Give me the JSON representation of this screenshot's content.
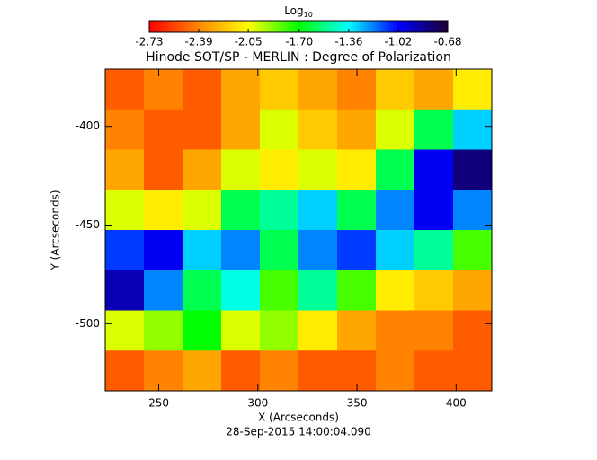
{
  "chart_data": {
    "type": "heatmap",
    "title": "Hinode SOT/SP - MERLIN : Degree of Polarization",
    "subtitle": "28-Sep-2015 14:00:04.090",
    "x_label": "X (Arcseconds)",
    "y_label": "Y (Arcseconds)",
    "colorbar_label": "Log",
    "colorbar_label_sub": "10",
    "colorbar_lim": [
      -2.73,
      -0.68
    ],
    "colorbar_ticks": [
      -2.73,
      -2.39,
      -2.05,
      {
        "value": -1.7,
        "label": "-1.70"
      },
      -1.36,
      -1.02,
      -0.68
    ],
    "colormap": [
      "#ff0000",
      "#ff8800",
      "#ffff00",
      "#00ff00",
      "#00ffff",
      "#0000ff",
      "#1a0033"
    ],
    "xlim": [
      223,
      418
    ],
    "xticks": [
      250,
      300,
      350,
      400
    ],
    "ylim": [
      -534,
      -371
    ],
    "yticks": [
      -400,
      -450,
      -500
    ],
    "values": [
      [
        -2.5,
        -2.4,
        -2.5,
        -2.3,
        -2.2,
        -2.3,
        -2.4,
        -2.2,
        -2.3,
        -2.1
      ],
      [
        -2.4,
        -2.5,
        -2.5,
        -2.3,
        -2.0,
        -2.2,
        -2.3,
        -2.0,
        -1.6,
        -1.3
      ],
      [
        -2.3,
        -2.5,
        -2.3,
        -2.0,
        -2.1,
        -2.0,
        -2.1,
        -1.6,
        -1.0,
        -0.8
      ],
      [
        -2.0,
        -2.1,
        -2.0,
        -1.6,
        -1.5,
        -1.3,
        -1.6,
        -1.2,
        -1.0,
        -1.2
      ],
      [
        -1.1,
        -1.0,
        -1.3,
        -1.2,
        -1.6,
        -1.2,
        -1.1,
        -1.3,
        -1.5,
        -1.8
      ],
      [
        -0.9,
        -1.2,
        -1.6,
        -1.4,
        -1.8,
        -1.5,
        -1.8,
        -2.1,
        -2.2,
        -2.3
      ],
      [
        -2.0,
        -1.9,
        -1.7,
        -2.0,
        -1.9,
        -2.1,
        -2.3,
        -2.4,
        -2.4,
        -2.5
      ],
      [
        -2.5,
        -2.4,
        -2.3,
        -2.5,
        -2.4,
        -2.5,
        -2.5,
        -2.4,
        -2.5,
        -2.5
      ]
    ]
  }
}
